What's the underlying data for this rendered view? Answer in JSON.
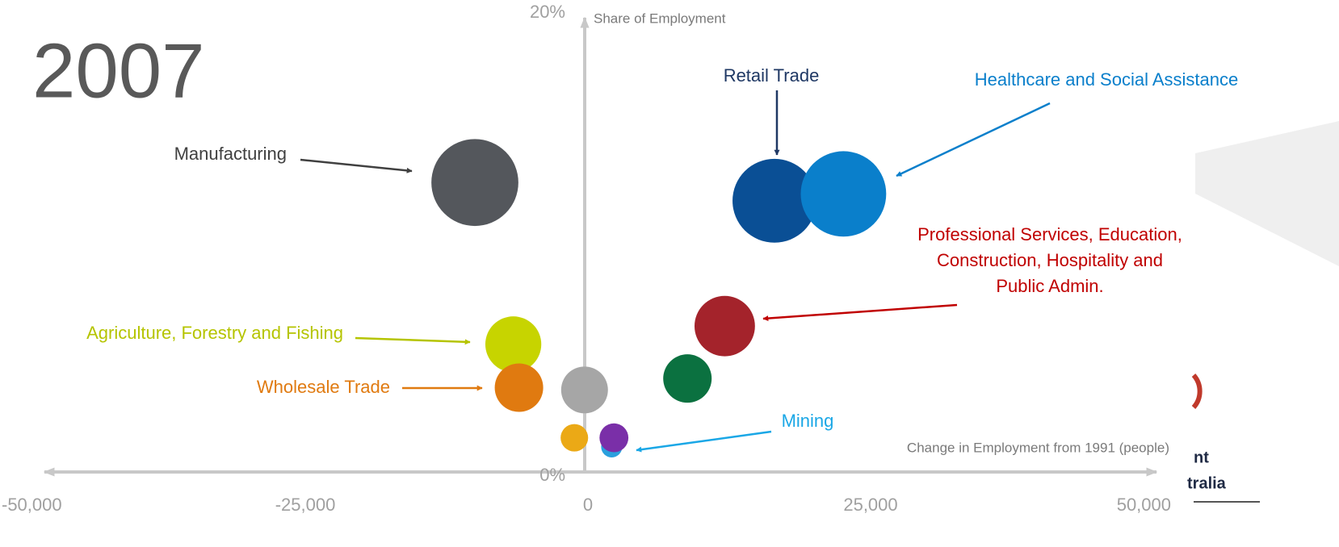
{
  "chart_data": {
    "type": "scatter",
    "title": "2007",
    "xlabel": "Change in Employment from 1991 (people)",
    "ylabel": "Share of Employment",
    "xlim": [
      -50000,
      50000
    ],
    "ylim": [
      0,
      20
    ],
    "xticks": [
      {
        "value": -50000,
        "label": "-50,000"
      },
      {
        "value": -25000,
        "label": "-25,000"
      },
      0,
      {
        "value": 25000,
        "label": "25,000"
      },
      {
        "value": 50000,
        "label": "50,000"
      }
    ],
    "yticks": [
      {
        "value": 0,
        "label": "0%"
      },
      {
        "value": 20,
        "label": "20%"
      }
    ],
    "points": [
      {
        "x": -10000,
        "y": 12.7,
        "size": 29,
        "color": "#54575c"
      },
      {
        "x": 16500,
        "y": 11.9,
        "size": 27,
        "color": "#0a4f95"
      },
      {
        "x": 22600,
        "y": 12.2,
        "size": 28,
        "color": "#0a7fcb"
      },
      {
        "x": 12100,
        "y": 6.4,
        "size": 14,
        "color": "#a4232b"
      },
      {
        "x": 8800,
        "y": 4.1,
        "size": 9,
        "color": "#0b7140"
      },
      {
        "x": -6600,
        "y": 5.6,
        "size": 12,
        "color": "#c7d400"
      },
      {
        "x": -6100,
        "y": 3.7,
        "size": 9,
        "color": "#e07a10"
      },
      {
        "x": -300,
        "y": 3.6,
        "size": 8.4,
        "color": "#a6a6a6"
      },
      {
        "x": -1200,
        "y": 1.5,
        "size": 2.9,
        "color": "#eba916"
      },
      {
        "x": 2100,
        "y": 1.1,
        "size": 1.7,
        "color": "#2aa0dd"
      },
      {
        "x": 2300,
        "y": 1.5,
        "size": 3.2,
        "color": "#7a2fa8"
      }
    ],
    "annotations": [
      {
        "text": [
          "Manufacturing"
        ],
        "color": "#404040"
      },
      {
        "text": [
          "Retail Trade"
        ],
        "color": "#1f3864"
      },
      {
        "text": [
          "Healthcare and Social Assistance"
        ],
        "color": "#0a7fcb"
      },
      {
        "text": [
          "Professional Services, Education,",
          "Construction, Hospitality and",
          "Public Admin."
        ],
        "color": "#c00000"
      },
      {
        "text": [
          "Agriculture, Forestry and Fishing"
        ],
        "color": "#b5c400"
      },
      {
        "text": [
          "Wholesale Trade"
        ],
        "color": "#e07a10"
      },
      {
        "text": [
          "Mining"
        ],
        "color": "#1aa7e6"
      }
    ]
  },
  "logo_text": [
    "nt",
    "tralia"
  ]
}
